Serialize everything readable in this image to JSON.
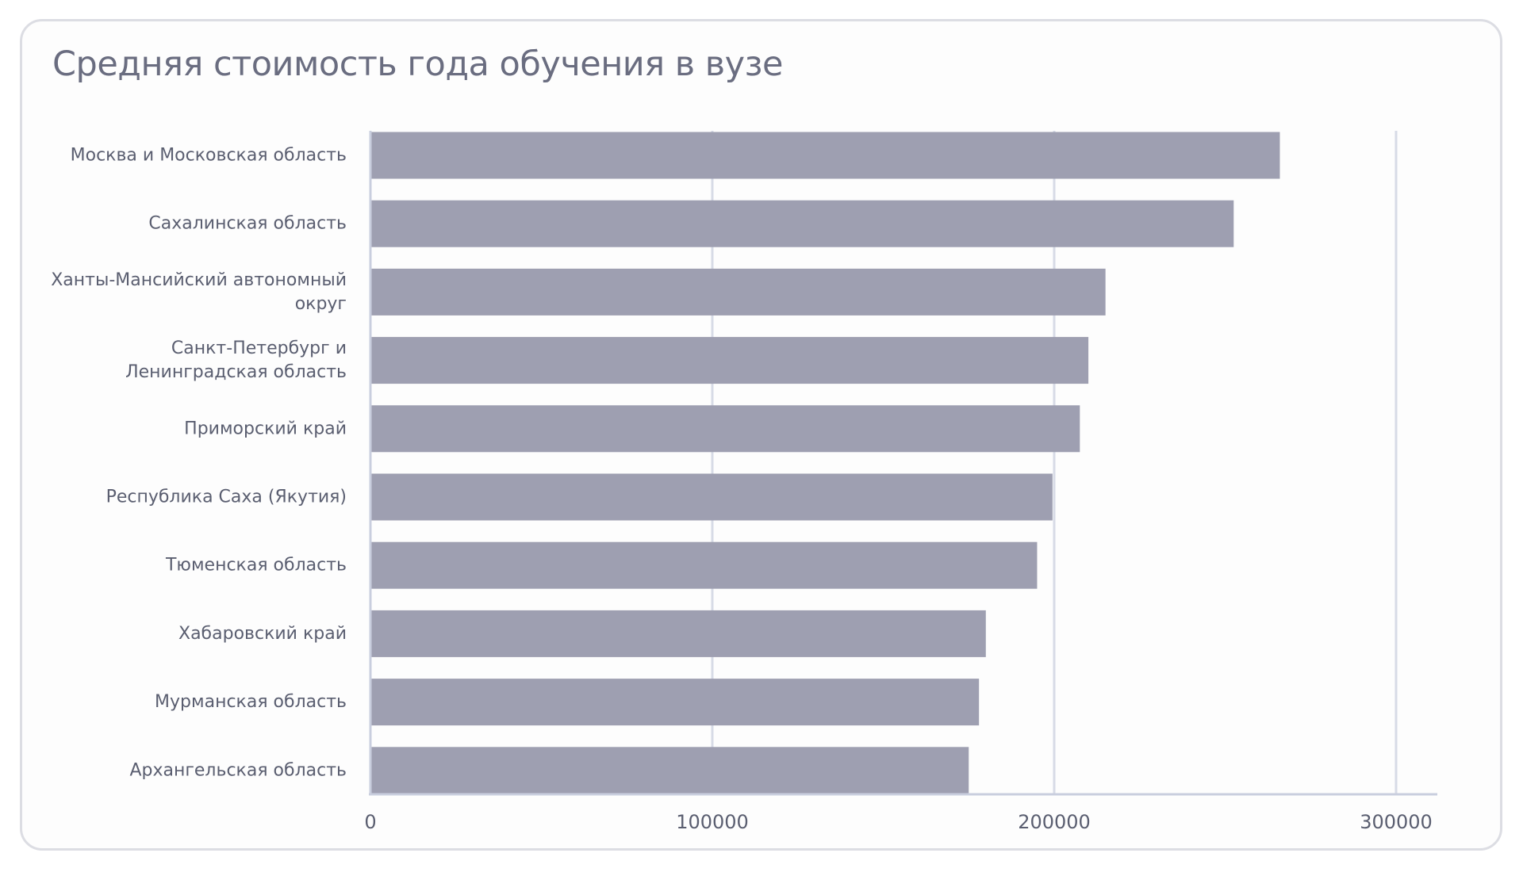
{
  "chart_data": {
    "type": "bar",
    "orientation": "horizontal",
    "title": "Средняя стоимость года обучения в вузе",
    "xlabel": "",
    "ylabel": "",
    "categories": [
      "Москва и Московская область",
      "Сахалинская область",
      "Ханты-Мансийский автономный округ",
      "Санкт-Петербург и Ленинградская область",
      "Приморский край",
      "Республика Саха (Якутия)",
      "Тюменская область",
      "Хабаровский край",
      "Мурманская область",
      "Архангельская область"
    ],
    "category_lines": [
      [
        "Москва и Московская область"
      ],
      [
        "Сахалинская область"
      ],
      [
        "Ханты-Мансийский автономный",
        "округ"
      ],
      [
        "Санкт-Петербург и",
        "Ленинградская область"
      ],
      [
        "Приморский край"
      ],
      [
        "Республика Саха (Якутия)"
      ],
      [
        "Тюменская область"
      ],
      [
        "Хабаровский край"
      ],
      [
        "Мурманская область"
      ],
      [
        "Архангельская область"
      ]
    ],
    "values": [
      266000,
      252500,
      215000,
      210000,
      207500,
      199500,
      195000,
      180000,
      178000,
      175000
    ],
    "xlim": [
      0,
      312000
    ],
    "xticks": [
      0,
      100000,
      200000,
      300000
    ],
    "xtick_labels": [
      "0",
      "100000",
      "200000",
      "300000"
    ],
    "grid": true,
    "legend": "none",
    "colors": {
      "bar": "#9e9fb1",
      "grid": "#d7dbe6",
      "axis": "#c9cede",
      "text": "#5a5e70",
      "title": "#6a6d80"
    }
  }
}
